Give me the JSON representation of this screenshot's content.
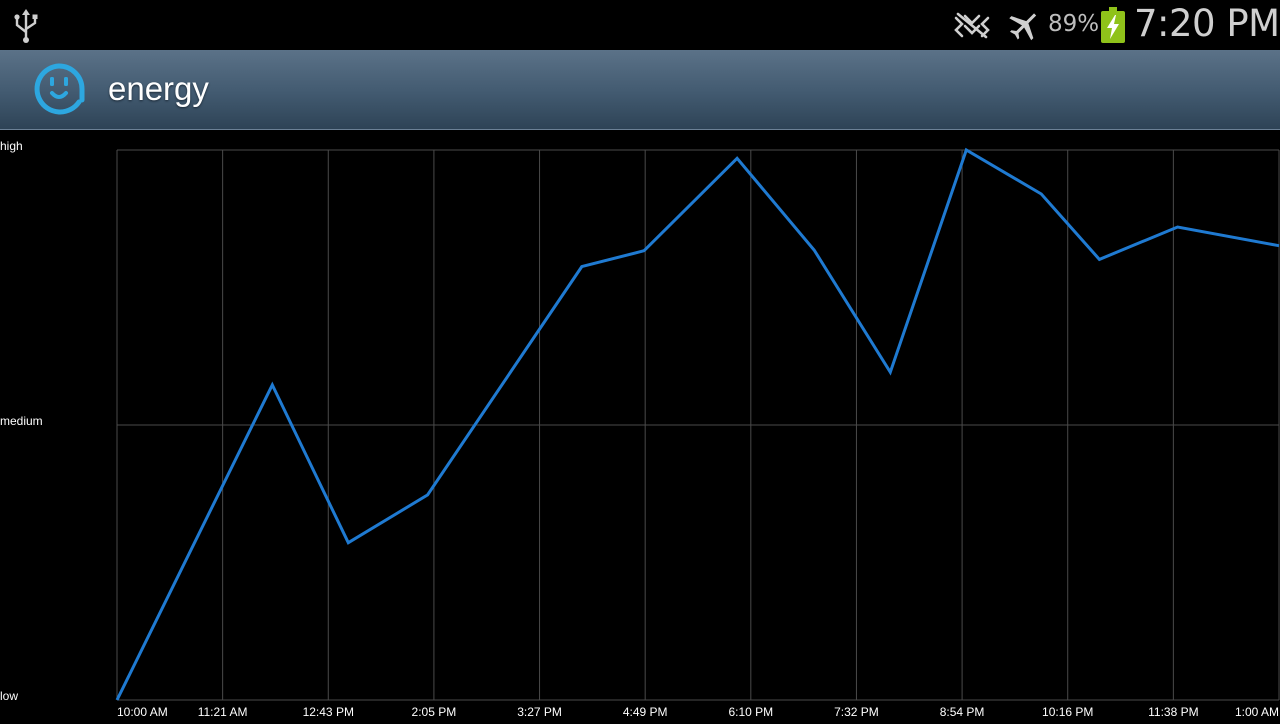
{
  "status_bar": {
    "battery_percent": "89%",
    "time": "7:20 PM",
    "icons": [
      "usb-icon",
      "no-signal-icon",
      "airplane-mode-icon",
      "battery-charging-icon"
    ]
  },
  "action_bar": {
    "title": "energy",
    "icon": "power-outlet-icon"
  },
  "colors": {
    "line": "#1f7ad1",
    "grid": "#4a4a4a",
    "background": "#000000",
    "action_bar": "#4a6177"
  },
  "chart_data": {
    "type": "line",
    "title": "",
    "xlabel": "",
    "ylabel": "",
    "y_tick_labels": [
      "high",
      "medium",
      "low"
    ],
    "x_tick_labels": [
      "10:00 AM",
      "11:21 AM",
      "12:43 PM",
      "2:05 PM",
      "3:27 PM",
      "4:49 PM",
      "6:10 PM",
      "7:32 PM",
      "8:54 PM",
      "10:16 PM",
      "11:38 PM",
      "1:00 AM"
    ],
    "xlim": [
      0,
      11
    ],
    "ylim": [
      0,
      1
    ],
    "grid": true,
    "series": [
      {
        "x": [
          0,
          1.47,
          2.19,
          2.94,
          4.4,
          4.99,
          5.87,
          6.6,
          7.32,
          8.04,
          8.75,
          9.3,
          10.04,
          11.0
        ],
        "y": [
          0,
          0.573,
          0.286,
          0.373,
          0.788,
          0.817,
          0.985,
          0.818,
          0.596,
          1.0,
          0.92,
          0.801,
          0.86,
          0.826
        ]
      }
    ]
  }
}
